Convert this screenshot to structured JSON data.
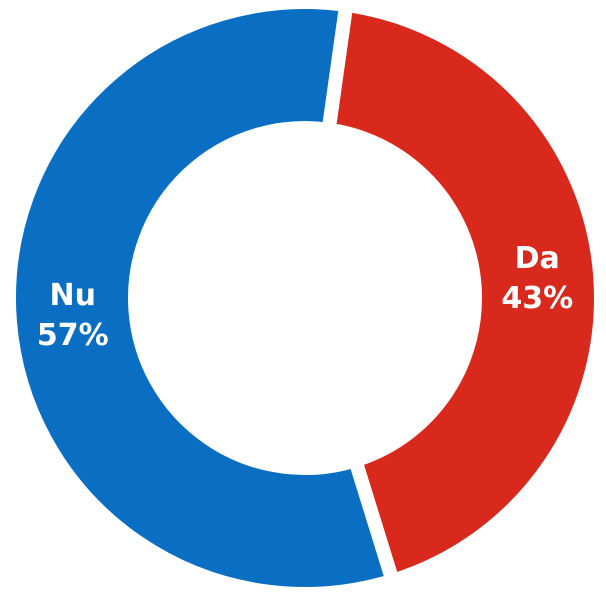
{
  "chart_data": {
    "type": "donut",
    "categories": [
      "Da",
      "Nu"
    ],
    "values": [
      43,
      57
    ],
    "value_labels": [
      "43%",
      "57%"
    ],
    "colors": [
      "#d9291c",
      "#0a6fc2"
    ]
  }
}
